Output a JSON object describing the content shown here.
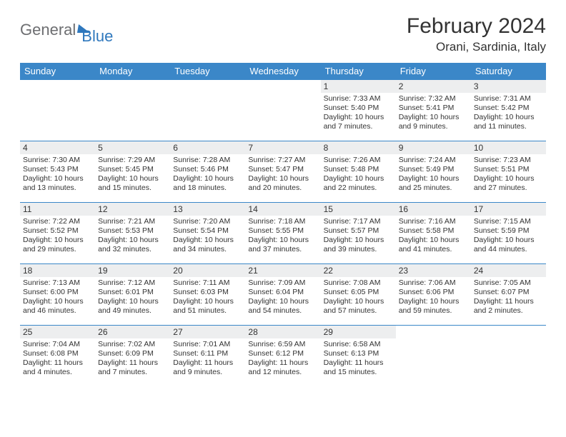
{
  "logo": {
    "part1": "General",
    "part2": "Blue"
  },
  "title": "February 2024",
  "location": "Orani, Sardinia, Italy",
  "columns": [
    "Sunday",
    "Monday",
    "Tuesday",
    "Wednesday",
    "Thursday",
    "Friday",
    "Saturday"
  ],
  "colors": {
    "header_bg": "#3b87c8",
    "header_text": "#ffffff",
    "daybar_bg": "#edeeef",
    "border": "#3b87c8",
    "logo_gray": "#6d6e71",
    "logo_blue": "#2f78bd",
    "text": "#333333",
    "background": "#ffffff"
  },
  "typography": {
    "title_fontsize": 30,
    "location_fontsize": 17,
    "header_fontsize": 13,
    "daynum_fontsize": 12,
    "body_fontsize": 10.5
  },
  "weeks": [
    [
      null,
      null,
      null,
      null,
      {
        "n": "1",
        "sr": "Sunrise: 7:33 AM",
        "ss": "Sunset: 5:40 PM",
        "d1": "Daylight: 10 hours",
        "d2": "and 7 minutes."
      },
      {
        "n": "2",
        "sr": "Sunrise: 7:32 AM",
        "ss": "Sunset: 5:41 PM",
        "d1": "Daylight: 10 hours",
        "d2": "and 9 minutes."
      },
      {
        "n": "3",
        "sr": "Sunrise: 7:31 AM",
        "ss": "Sunset: 5:42 PM",
        "d1": "Daylight: 10 hours",
        "d2": "and 11 minutes."
      }
    ],
    [
      {
        "n": "4",
        "sr": "Sunrise: 7:30 AM",
        "ss": "Sunset: 5:43 PM",
        "d1": "Daylight: 10 hours",
        "d2": "and 13 minutes."
      },
      {
        "n": "5",
        "sr": "Sunrise: 7:29 AM",
        "ss": "Sunset: 5:45 PM",
        "d1": "Daylight: 10 hours",
        "d2": "and 15 minutes."
      },
      {
        "n": "6",
        "sr": "Sunrise: 7:28 AM",
        "ss": "Sunset: 5:46 PM",
        "d1": "Daylight: 10 hours",
        "d2": "and 18 minutes."
      },
      {
        "n": "7",
        "sr": "Sunrise: 7:27 AM",
        "ss": "Sunset: 5:47 PM",
        "d1": "Daylight: 10 hours",
        "d2": "and 20 minutes."
      },
      {
        "n": "8",
        "sr": "Sunrise: 7:26 AM",
        "ss": "Sunset: 5:48 PM",
        "d1": "Daylight: 10 hours",
        "d2": "and 22 minutes."
      },
      {
        "n": "9",
        "sr": "Sunrise: 7:24 AM",
        "ss": "Sunset: 5:49 PM",
        "d1": "Daylight: 10 hours",
        "d2": "and 25 minutes."
      },
      {
        "n": "10",
        "sr": "Sunrise: 7:23 AM",
        "ss": "Sunset: 5:51 PM",
        "d1": "Daylight: 10 hours",
        "d2": "and 27 minutes."
      }
    ],
    [
      {
        "n": "11",
        "sr": "Sunrise: 7:22 AM",
        "ss": "Sunset: 5:52 PM",
        "d1": "Daylight: 10 hours",
        "d2": "and 29 minutes."
      },
      {
        "n": "12",
        "sr": "Sunrise: 7:21 AM",
        "ss": "Sunset: 5:53 PM",
        "d1": "Daylight: 10 hours",
        "d2": "and 32 minutes."
      },
      {
        "n": "13",
        "sr": "Sunrise: 7:20 AM",
        "ss": "Sunset: 5:54 PM",
        "d1": "Daylight: 10 hours",
        "d2": "and 34 minutes."
      },
      {
        "n": "14",
        "sr": "Sunrise: 7:18 AM",
        "ss": "Sunset: 5:55 PM",
        "d1": "Daylight: 10 hours",
        "d2": "and 37 minutes."
      },
      {
        "n": "15",
        "sr": "Sunrise: 7:17 AM",
        "ss": "Sunset: 5:57 PM",
        "d1": "Daylight: 10 hours",
        "d2": "and 39 minutes."
      },
      {
        "n": "16",
        "sr": "Sunrise: 7:16 AM",
        "ss": "Sunset: 5:58 PM",
        "d1": "Daylight: 10 hours",
        "d2": "and 41 minutes."
      },
      {
        "n": "17",
        "sr": "Sunrise: 7:15 AM",
        "ss": "Sunset: 5:59 PM",
        "d1": "Daylight: 10 hours",
        "d2": "and 44 minutes."
      }
    ],
    [
      {
        "n": "18",
        "sr": "Sunrise: 7:13 AM",
        "ss": "Sunset: 6:00 PM",
        "d1": "Daylight: 10 hours",
        "d2": "and 46 minutes."
      },
      {
        "n": "19",
        "sr": "Sunrise: 7:12 AM",
        "ss": "Sunset: 6:01 PM",
        "d1": "Daylight: 10 hours",
        "d2": "and 49 minutes."
      },
      {
        "n": "20",
        "sr": "Sunrise: 7:11 AM",
        "ss": "Sunset: 6:03 PM",
        "d1": "Daylight: 10 hours",
        "d2": "and 51 minutes."
      },
      {
        "n": "21",
        "sr": "Sunrise: 7:09 AM",
        "ss": "Sunset: 6:04 PM",
        "d1": "Daylight: 10 hours",
        "d2": "and 54 minutes."
      },
      {
        "n": "22",
        "sr": "Sunrise: 7:08 AM",
        "ss": "Sunset: 6:05 PM",
        "d1": "Daylight: 10 hours",
        "d2": "and 57 minutes."
      },
      {
        "n": "23",
        "sr": "Sunrise: 7:06 AM",
        "ss": "Sunset: 6:06 PM",
        "d1": "Daylight: 10 hours",
        "d2": "and 59 minutes."
      },
      {
        "n": "24",
        "sr": "Sunrise: 7:05 AM",
        "ss": "Sunset: 6:07 PM",
        "d1": "Daylight: 11 hours",
        "d2": "and 2 minutes."
      }
    ],
    [
      {
        "n": "25",
        "sr": "Sunrise: 7:04 AM",
        "ss": "Sunset: 6:08 PM",
        "d1": "Daylight: 11 hours",
        "d2": "and 4 minutes."
      },
      {
        "n": "26",
        "sr": "Sunrise: 7:02 AM",
        "ss": "Sunset: 6:09 PM",
        "d1": "Daylight: 11 hours",
        "d2": "and 7 minutes."
      },
      {
        "n": "27",
        "sr": "Sunrise: 7:01 AM",
        "ss": "Sunset: 6:11 PM",
        "d1": "Daylight: 11 hours",
        "d2": "and 9 minutes."
      },
      {
        "n": "28",
        "sr": "Sunrise: 6:59 AM",
        "ss": "Sunset: 6:12 PM",
        "d1": "Daylight: 11 hours",
        "d2": "and 12 minutes."
      },
      {
        "n": "29",
        "sr": "Sunrise: 6:58 AM",
        "ss": "Sunset: 6:13 PM",
        "d1": "Daylight: 11 hours",
        "d2": "and 15 minutes."
      },
      null,
      null
    ]
  ]
}
